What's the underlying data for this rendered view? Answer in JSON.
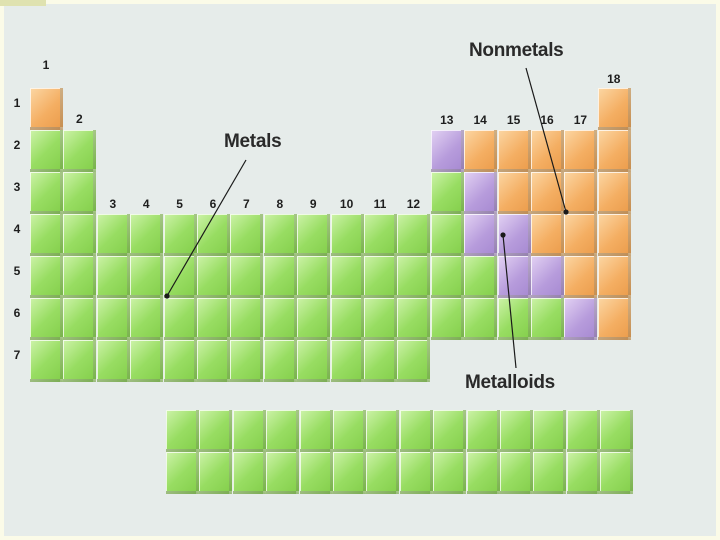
{
  "groups": [
    "1",
    "2",
    "3",
    "4",
    "5",
    "6",
    "7",
    "8",
    "9",
    "10",
    "11",
    "12",
    "13",
    "14",
    "15",
    "16",
    "17",
    "18"
  ],
  "periods": [
    "1",
    "2",
    "3",
    "4",
    "5",
    "6",
    "7"
  ],
  "labels": {
    "metals": "Metals",
    "nonmetals": "Nonmetals",
    "metalloids": "Metalloids"
  },
  "colors": {
    "metals": "#98dd62",
    "nonmetals": "#f4ae62",
    "metalloids": "#b79cdc",
    "background": "#e6ecea"
  }
}
